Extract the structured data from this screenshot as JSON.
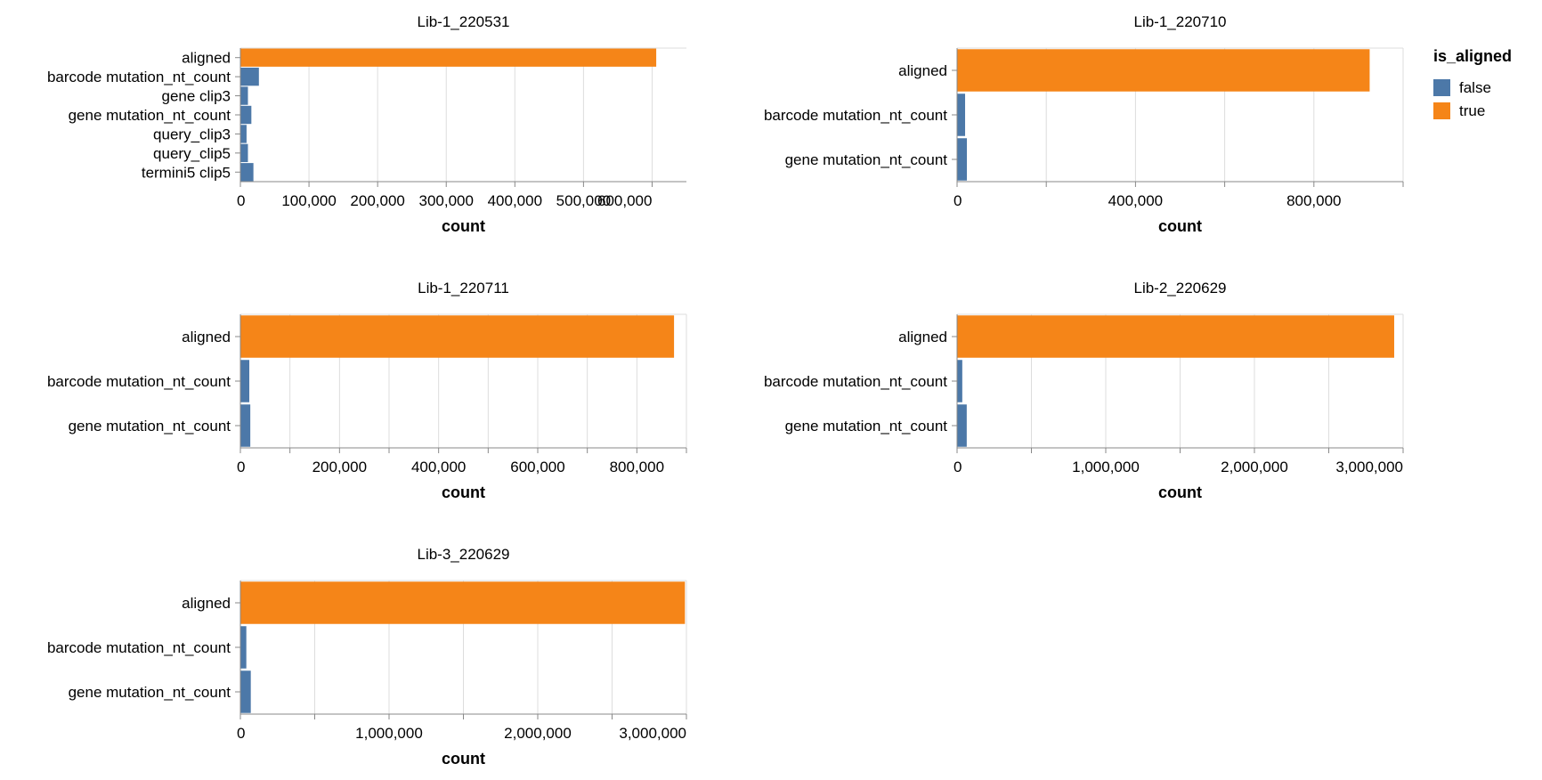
{
  "colors": {
    "false": "#4c78a8",
    "true": "#f58518",
    "grid": "#dddddd",
    "axis": "#888888"
  },
  "legend": {
    "title": "is_aligned",
    "items": [
      {
        "label": "false",
        "color": "#4c78a8"
      },
      {
        "label": "true",
        "color": "#f58518"
      }
    ]
  },
  "chart_data": [
    {
      "type": "bar",
      "orientation": "horizontal",
      "title": "Lib-1_220531",
      "xlabel": "count",
      "xlim": [
        0,
        650000
      ],
      "xticks": [
        0,
        100000,
        200000,
        300000,
        400000,
        500000,
        600000
      ],
      "xtick_labels": [
        "0",
        "100,000",
        "200,000",
        "300,000",
        "400,000",
        "500,000",
        "600,000"
      ],
      "categories": [
        "aligned",
        "barcode mutation_nt_count",
        "gene clip3",
        "gene mutation_nt_count",
        "query_clip3",
        "query_clip5",
        "termini5 clip5"
      ],
      "values": [
        606000,
        27000,
        11000,
        16000,
        9000,
        11000,
        19000
      ],
      "is_aligned": [
        true,
        false,
        false,
        false,
        false,
        false,
        false
      ]
    },
    {
      "type": "bar",
      "orientation": "horizontal",
      "title": "Lib-1_220710",
      "xlabel": "count",
      "xlim": [
        0,
        1000000
      ],
      "xticks": [
        0,
        200000,
        400000,
        600000,
        800000,
        1000000
      ],
      "xtick_labels": [
        "0",
        "",
        "400,000",
        "",
        "800,000",
        ""
      ],
      "categories": [
        "aligned",
        "barcode mutation_nt_count",
        "gene mutation_nt_count"
      ],
      "values": [
        925000,
        18000,
        22000
      ],
      "is_aligned": [
        true,
        false,
        false
      ]
    },
    {
      "type": "bar",
      "orientation": "horizontal",
      "title": "Lib-1_220711",
      "xlabel": "count",
      "xlim": [
        0,
        900000
      ],
      "xticks": [
        0,
        100000,
        200000,
        300000,
        400000,
        500000,
        600000,
        700000,
        800000,
        900000
      ],
      "xtick_labels": [
        "0",
        "",
        "200,000",
        "",
        "400,000",
        "",
        "600,000",
        "",
        "800,000",
        ""
      ],
      "categories": [
        "aligned",
        "barcode mutation_nt_count",
        "gene mutation_nt_count"
      ],
      "values": [
        875000,
        18000,
        20000
      ],
      "is_aligned": [
        true,
        false,
        false
      ]
    },
    {
      "type": "bar",
      "orientation": "horizontal",
      "title": "Lib-2_220629",
      "xlabel": "count",
      "xlim": [
        0,
        3000000
      ],
      "xticks": [
        0,
        500000,
        1000000,
        1500000,
        2000000,
        2500000,
        3000000
      ],
      "xtick_labels": [
        "0",
        "",
        "1,000,000",
        "",
        "2,000,000",
        "",
        "3,000,000"
      ],
      "categories": [
        "aligned",
        "barcode mutation_nt_count",
        "gene mutation_nt_count"
      ],
      "values": [
        2940000,
        35000,
        65000
      ],
      "is_aligned": [
        true,
        false,
        false
      ]
    },
    {
      "type": "bar",
      "orientation": "horizontal",
      "title": "Lib-3_220629",
      "xlabel": "count",
      "xlim": [
        0,
        3000000
      ],
      "xticks": [
        0,
        500000,
        1000000,
        1500000,
        2000000,
        2500000,
        3000000
      ],
      "xtick_labels": [
        "0",
        "",
        "1,000,000",
        "",
        "2,000,000",
        "",
        "3,000,000"
      ],
      "categories": [
        "aligned",
        "barcode mutation_nt_count",
        "gene mutation_nt_count"
      ],
      "values": [
        2990000,
        40000,
        70000
      ],
      "is_aligned": [
        true,
        false,
        false
      ]
    }
  ]
}
